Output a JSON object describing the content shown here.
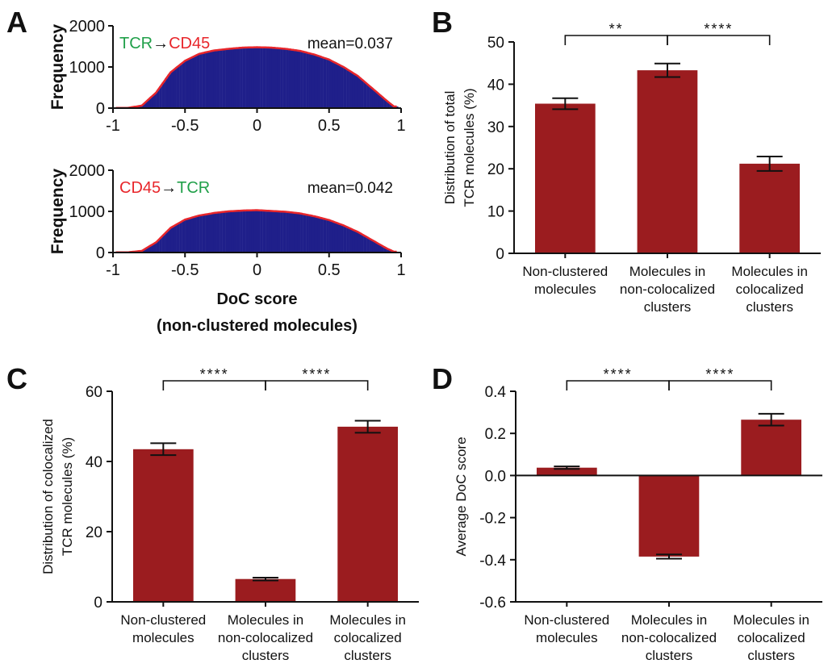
{
  "panels": {
    "A": {
      "letter": "A"
    },
    "B": {
      "letter": "B"
    },
    "C": {
      "letter": "C"
    },
    "D": {
      "letter": "D"
    }
  },
  "colors": {
    "bar": "#9b1c1f",
    "hist": "#1f1f8a",
    "fit": "#e8262b",
    "green": "#21a04a",
    "red": "#e8262b"
  },
  "chart_data": [
    {
      "id": "A-top",
      "type": "histogram",
      "label_parts": [
        {
          "text": "TCR",
          "color": "green"
        },
        {
          "text": "→",
          "color": "black"
        },
        {
          "text": "CD45",
          "color": "red"
        }
      ],
      "annotation": "mean=0.037",
      "ylabel": "Frequency",
      "xlim": [
        -1,
        1
      ],
      "ylim": [
        0,
        2000
      ],
      "yticks": [
        "0",
        "1000",
        "2000"
      ],
      "xticks": [
        "-1",
        "-0.5",
        "0",
        "0.5",
        "1"
      ],
      "x": [
        -0.9,
        -0.8,
        -0.7,
        -0.6,
        -0.5,
        -0.4,
        -0.3,
        -0.2,
        -0.1,
        0.0,
        0.1,
        0.2,
        0.3,
        0.4,
        0.5,
        0.6,
        0.7,
        0.8,
        0.9,
        0.95
      ],
      "values": [
        5,
        60,
        380,
        870,
        1150,
        1320,
        1400,
        1440,
        1470,
        1480,
        1470,
        1440,
        1390,
        1300,
        1180,
        1000,
        780,
        480,
        180,
        40
      ]
    },
    {
      "id": "A-bottom",
      "type": "histogram",
      "label_parts": [
        {
          "text": "CD45",
          "color": "red"
        },
        {
          "text": "→",
          "color": "black"
        },
        {
          "text": "TCR",
          "color": "green"
        }
      ],
      "annotation": "mean=0.042",
      "ylabel": "Frequency",
      "xlabel_lines": [
        "DoC score",
        "(non-clustered molecules)"
      ],
      "xlim": [
        -1,
        1
      ],
      "ylim": [
        0,
        2000
      ],
      "yticks": [
        "0",
        "1000",
        "2000"
      ],
      "xticks": [
        "-1",
        "-0.5",
        "0",
        "0.5",
        "1"
      ],
      "x": [
        -0.9,
        -0.8,
        -0.7,
        -0.6,
        -0.5,
        -0.4,
        -0.3,
        -0.2,
        -0.1,
        0.0,
        0.1,
        0.2,
        0.3,
        0.4,
        0.5,
        0.6,
        0.7,
        0.8,
        0.9,
        0.95
      ],
      "values": [
        5,
        40,
        250,
        600,
        800,
        900,
        960,
        1000,
        1020,
        1030,
        1010,
        990,
        950,
        880,
        790,
        660,
        500,
        300,
        100,
        20
      ]
    },
    {
      "id": "B",
      "type": "bar",
      "ylabel_lines": [
        "Distribution of total",
        "TCR molecules (%)"
      ],
      "categories": [
        [
          "Non-clustered",
          "molecules"
        ],
        [
          "Molecules in",
          "non-colocalized",
          "clusters"
        ],
        [
          "Molecules in",
          "colocalized",
          "clusters"
        ]
      ],
      "values": [
        35.4,
        43.3,
        21.2
      ],
      "errors": [
        1.3,
        1.6,
        1.7
      ],
      "ylim": [
        0,
        50
      ],
      "yticks": [
        "0",
        "10",
        "20",
        "30",
        "40",
        "50"
      ],
      "significance": [
        {
          "from": 0,
          "to": 1,
          "label": "**"
        },
        {
          "from": 1,
          "to": 2,
          "label": "****"
        }
      ]
    },
    {
      "id": "C",
      "type": "bar",
      "ylabel_lines": [
        "Distribution of colocalized",
        "TCR molecules (%)"
      ],
      "categories": [
        [
          "Non-clustered",
          "molecules"
        ],
        [
          "Molecules in",
          "non-colocalized",
          "clusters"
        ],
        [
          "Molecules in",
          "colocalized",
          "clusters"
        ]
      ],
      "values": [
        43.5,
        6.5,
        49.9
      ],
      "errors": [
        1.7,
        0.4,
        1.7
      ],
      "ylim": [
        0,
        60
      ],
      "yticks": [
        "0",
        "20",
        "40",
        "60"
      ],
      "significance": [
        {
          "from": 0,
          "to": 1,
          "label": "****"
        },
        {
          "from": 1,
          "to": 2,
          "label": "****"
        }
      ]
    },
    {
      "id": "D",
      "type": "bar",
      "ylabel_lines": [
        "Average DoC score"
      ],
      "categories": [
        [
          "Non-clustered",
          "molecules"
        ],
        [
          "Molecules in",
          "non-colocalized",
          "clusters"
        ],
        [
          "Molecules in",
          "colocalized",
          "clusters"
        ]
      ],
      "values": [
        0.037,
        -0.385,
        0.265
      ],
      "errors": [
        0.006,
        0.01,
        0.028
      ],
      "ylim": [
        -0.6,
        0.4
      ],
      "yticks": [
        "0.4",
        "0.2",
        "0.0",
        "-0.2",
        "-0.4",
        "-0.6"
      ],
      "ytick_values": [
        0.4,
        0.2,
        0.0,
        -0.2,
        -0.4,
        -0.6
      ],
      "significance": [
        {
          "from": 0,
          "to": 1,
          "label": "****"
        },
        {
          "from": 1,
          "to": 2,
          "label": "****"
        }
      ]
    }
  ]
}
